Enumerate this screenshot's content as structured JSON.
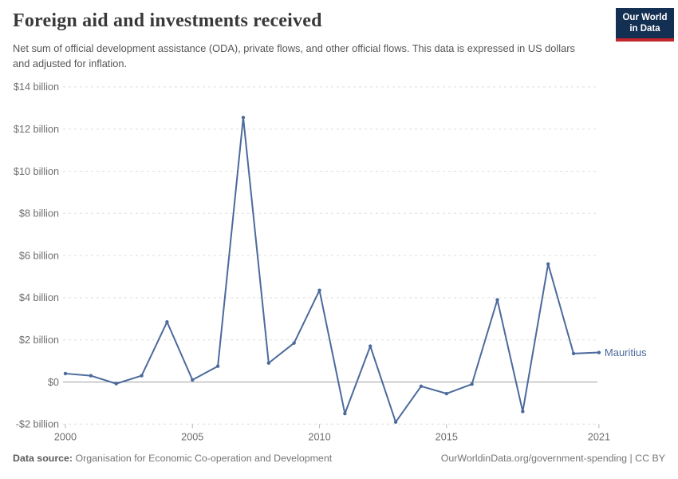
{
  "header": {
    "title": "Foreign aid and investments received",
    "subtitle": "Net sum of official development assistance (ODA), private flows, and other official flows. This data is expressed in US dollars and adjusted for inflation.",
    "logo": {
      "line1": "Our World",
      "line2": "in Data",
      "bg_color": "#132f52",
      "stripe_color": "#c2252c"
    }
  },
  "chart_data": {
    "type": "line",
    "title": "Foreign aid and investments received",
    "entity": "Mauritius",
    "x": [
      2000,
      2001,
      2002,
      2003,
      2004,
      2005,
      2006,
      2007,
      2008,
      2009,
      2010,
      2011,
      2012,
      2013,
      2014,
      2015,
      2016,
      2017,
      2018,
      2019,
      2020,
      2021
    ],
    "series": [
      {
        "name": "Mauritius",
        "color": "#4c6a9c",
        "values": [
          0.4,
          0.3,
          -0.08,
          0.3,
          2.85,
          0.1,
          0.75,
          12.55,
          0.9,
          1.85,
          4.35,
          -1.5,
          1.7,
          -1.9,
          -0.2,
          -0.55,
          -0.1,
          3.9,
          -1.4,
          5.6,
          1.35,
          1.4
        ]
      }
    ],
    "xlabel": "",
    "ylabel": "",
    "xlim": [
      2000,
      2021
    ],
    "ylim": [
      -2,
      14
    ],
    "x_ticks": [
      2000,
      2005,
      2010,
      2015,
      2021
    ],
    "y_ticks": [
      {
        "value": 14,
        "label": "$14 billion"
      },
      {
        "value": 12,
        "label": "$12 billion"
      },
      {
        "value": 10,
        "label": "$10 billion"
      },
      {
        "value": 8,
        "label": "$8 billion"
      },
      {
        "value": 6,
        "label": "$6 billion"
      },
      {
        "value": 4,
        "label": "$4 billion"
      },
      {
        "value": 2,
        "label": "$2 billion"
      },
      {
        "value": 0,
        "label": "$0"
      },
      {
        "value": -2,
        "label": "-$2 billion"
      }
    ],
    "grid": true,
    "legend_position": "end-of-line-label",
    "colors": {
      "gridline": "#dedede",
      "zero_line": "#a1a1a1",
      "tick": "#b9b9b9",
      "axis_label": "#6e6e6e"
    }
  },
  "footer": {
    "data_source_label": "Data source:",
    "data_source_value": "Organisation for Economic Co-operation and Development",
    "link_text": "OurWorldinData.org/government-spending | CC BY"
  }
}
